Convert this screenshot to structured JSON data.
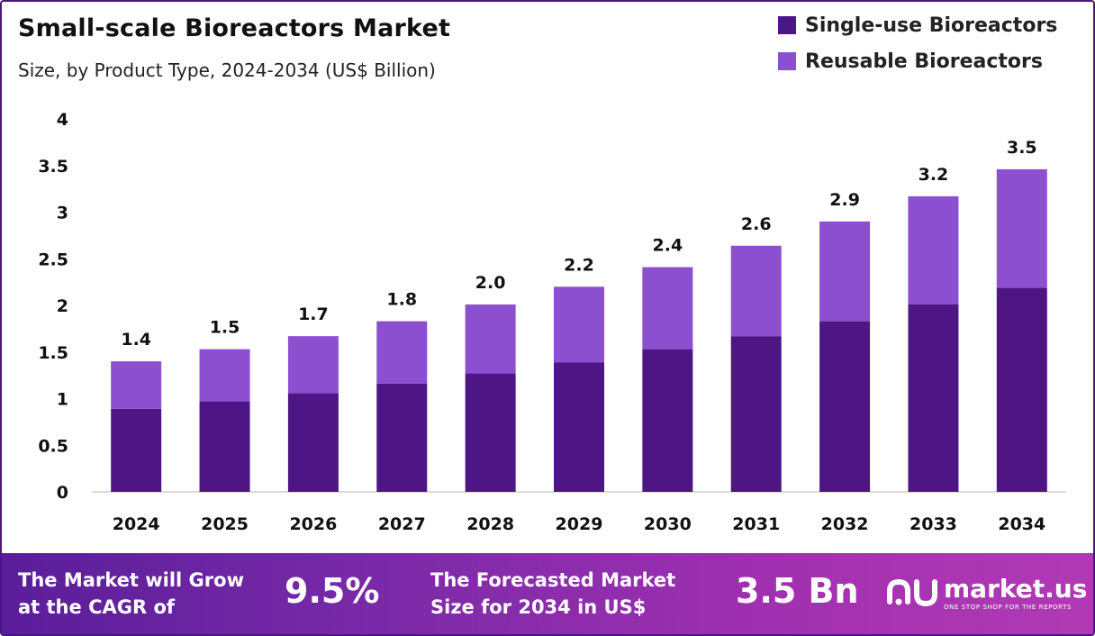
{
  "chart_data": {
    "type": "stacked-bar",
    "title": "Small-scale Bioreactors Market",
    "subtitle": "Size, by Product Type, 2024-2034 (US$ Billion)",
    "categories": [
      "2024",
      "2025",
      "2026",
      "2027",
      "2028",
      "2029",
      "2030",
      "2031",
      "2032",
      "2033",
      "2034"
    ],
    "series": [
      {
        "name": "Single-use Bioreactors",
        "color": "#4e1585",
        "values": [
          0.89,
          0.97,
          1.06,
          1.16,
          1.27,
          1.39,
          1.53,
          1.67,
          1.83,
          2.01,
          2.19
        ]
      },
      {
        "name": "Reusable Bioreactors",
        "color": "#8b4fd0",
        "values": [
          0.51,
          0.56,
          0.61,
          0.67,
          0.74,
          0.81,
          0.88,
          0.97,
          1.07,
          1.16,
          1.27
        ]
      }
    ],
    "totals_labels": [
      "1.4",
      "1.5",
      "1.7",
      "1.8",
      "2.0",
      "2.2",
      "2.4",
      "2.6",
      "2.9",
      "3.2",
      "3.5"
    ],
    "totals": [
      1.4,
      1.53,
      1.67,
      1.83,
      2.01,
      2.2,
      2.41,
      2.64,
      2.9,
      3.17,
      3.46
    ],
    "y_ticks": [
      "0",
      "0.5",
      "1",
      "1.5",
      "2",
      "2.5",
      "3",
      "3.5",
      "4"
    ],
    "ylim": [
      0,
      4
    ]
  },
  "footer": {
    "cagr_text_line1": "The Market will Grow",
    "cagr_text_line2": "at the CAGR of",
    "cagr_value": "9.5%",
    "forecast_text_line1": "The Forecasted Market",
    "forecast_text_line2": "Size for 2034 in US$",
    "forecast_value": "3.5 Bn",
    "brand_name": "market.us",
    "brand_tagline": "ONE STOP SHOP FOR THE REPORTS"
  },
  "colors": {
    "accent": "#4a1584",
    "footer_start": "#5a1e9a",
    "footer_end": "#b13ab4"
  }
}
